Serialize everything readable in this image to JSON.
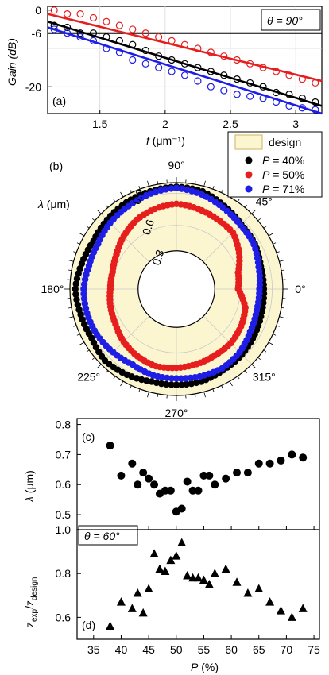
{
  "colors": {
    "black": "#000000",
    "red": "#e61e1e",
    "blue": "#1e1ee6",
    "design_fill": "#fbf6cf",
    "design_edge": "#c8b560"
  },
  "chart_data": [
    {
      "panel": "(a)",
      "type": "scatter",
      "annotation": "θ = 90°",
      "xlabel_var": "f",
      "xlabel_unit": " (μm⁻¹)",
      "ylabel": "Gain (dB)",
      "xlim": [
        1.1,
        3.2
      ],
      "ylim": [
        -27,
        1
      ],
      "x_ticks": [
        1.5,
        2,
        2.5,
        3
      ],
      "y_ticks": [
        0,
        -6,
        -20
      ],
      "hline_y": -6,
      "grid": true,
      "series": [
        {
          "color": "#000000",
          "x": [
            1.15,
            1.25,
            1.35,
            1.45,
            1.55,
            1.65,
            1.75,
            1.85,
            1.95,
            2.05,
            2.15,
            2.25,
            2.35,
            2.45,
            2.55,
            2.65,
            2.75,
            2.85,
            2.95,
            3.05,
            3.15
          ],
          "y": [
            -4,
            -4.5,
            -6,
            -6,
            -7,
            -8,
            -9,
            -10.5,
            -12,
            -13,
            -14,
            -15,
            -16,
            -17,
            -18,
            -19,
            -20,
            -21.5,
            -22,
            -23,
            -24
          ],
          "fit": {
            "x": [
              1.1,
              3.2
            ],
            "y": [
              -3,
              -25
            ]
          }
        },
        {
          "color": "#e61e1e",
          "x": [
            1.15,
            1.25,
            1.35,
            1.45,
            1.55,
            1.65,
            1.75,
            1.85,
            1.95,
            2.05,
            2.15,
            2.25,
            2.35,
            2.45,
            2.55,
            2.65,
            2.75,
            2.85,
            2.95,
            3.05,
            3.15
          ],
          "y": [
            0,
            -1,
            -1,
            -2,
            -3,
            -4,
            -5,
            -6,
            -7,
            -8,
            -9,
            -10,
            -11,
            -12,
            -13,
            -14,
            -15,
            -16,
            -17,
            -18,
            -19
          ],
          "fit": {
            "x": [
              1.1,
              3.2
            ],
            "y": [
              -1,
              -18.5
            ]
          }
        },
        {
          "color": "#1e1ee6",
          "x": [
            1.15,
            1.25,
            1.35,
            1.45,
            1.55,
            1.65,
            1.75,
            1.85,
            1.95,
            2.05,
            2.15,
            2.25,
            2.35,
            2.45,
            2.55,
            2.65,
            2.75,
            2.85,
            2.95,
            3.05,
            3.15
          ],
          "y": [
            -5,
            -6,
            -7,
            -8,
            -10,
            -11,
            -13,
            -14,
            -15,
            -16,
            -17,
            -18.5,
            -20,
            -21,
            -22,
            -22.5,
            -23,
            -24,
            -25,
            -25.5,
            -26
          ],
          "fit": {
            "x": [
              1.1,
              3.2
            ],
            "y": [
              -4.5,
              -27
            ]
          }
        }
      ]
    },
    {
      "panel": "(b)",
      "type": "scatter",
      "projection": "polar",
      "radial_label_var": "λ",
      "radial_label_unit": " (μm)",
      "rlim": [
        0,
        1.0
      ],
      "r_ticks": [
        "0.3",
        "0.6",
        "0.9"
      ],
      "angle_ticks": [
        "0°",
        "45°",
        "90°",
        "180°",
        "225°",
        "270°",
        "315°"
      ],
      "design": {
        "name": "design",
        "r_inner": 0.36,
        "r_outer": 1.0
      },
      "legend_position": "top-right",
      "series": [
        {
          "name_var": "P",
          "name_value": " = 40%",
          "color": "#000000",
          "angle_deg": [
            0,
            15,
            30,
            45,
            60,
            75,
            90,
            105,
            120,
            135,
            150,
            165,
            180,
            195,
            210,
            225,
            240,
            255,
            270,
            285,
            300,
            315,
            330,
            345
          ],
          "r": [
            0.82,
            0.82,
            0.85,
            0.86,
            0.9,
            0.95,
            0.96,
            0.95,
            0.94,
            0.92,
            0.9,
            0.92,
            0.95,
            0.93,
            0.92,
            0.95,
            0.93,
            0.9,
            0.9,
            0.9,
            0.88,
            0.87,
            0.85,
            0.83
          ]
        },
        {
          "name_var": "P",
          "name_value": " = 50%",
          "color": "#e61e1e",
          "angle_deg": [
            0,
            15,
            30,
            45,
            60,
            75,
            90,
            105,
            120,
            135,
            150,
            165,
            180,
            195,
            210,
            225,
            240,
            255,
            270,
            285,
            300,
            315,
            330,
            345
          ],
          "r": [
            0.58,
            0.6,
            0.68,
            0.75,
            0.76,
            0.78,
            0.8,
            0.78,
            0.75,
            0.7,
            0.65,
            0.62,
            0.62,
            0.64,
            0.66,
            0.7,
            0.73,
            0.75,
            0.74,
            0.73,
            0.72,
            0.72,
            0.7,
            0.67
          ]
        },
        {
          "name_var": "P",
          "name_value": " = 71%",
          "color": "#1e1ee6",
          "angle_deg": [
            0,
            15,
            30,
            45,
            60,
            75,
            90,
            105,
            120,
            135,
            150,
            165,
            180,
            195,
            210,
            225,
            240,
            255,
            270,
            285,
            300,
            315,
            330,
            345
          ],
          "r": [
            0.78,
            0.8,
            0.84,
            0.85,
            0.88,
            0.92,
            0.95,
            0.93,
            0.9,
            0.88,
            0.85,
            0.85,
            0.87,
            0.87,
            0.86,
            0.84,
            0.82,
            0.84,
            0.84,
            0.85,
            0.86,
            0.84,
            0.8,
            0.78
          ]
        }
      ]
    },
    {
      "panel": "(c)",
      "type": "scatter",
      "ylabel_var": "λ",
      "ylabel_unit": " (μm)",
      "xlim": [
        32,
        76
      ],
      "ylim": [
        0.45,
        0.82
      ],
      "y_ticks": [
        0.5,
        0.6,
        0.7,
        0.8
      ],
      "annotation": "θ = 60°",
      "series": [
        {
          "color": "#000000",
          "x": [
            38,
            40,
            42,
            43,
            44,
            45,
            46,
            47,
            48,
            49,
            50,
            51,
            52,
            53,
            54,
            55,
            56,
            57,
            59,
            61,
            63,
            65,
            67,
            69,
            71,
            73
          ],
          "y": [
            0.73,
            0.63,
            0.67,
            0.6,
            0.64,
            0.62,
            0.6,
            0.57,
            0.58,
            0.58,
            0.51,
            0.52,
            0.61,
            0.58,
            0.58,
            0.63,
            0.63,
            0.6,
            0.62,
            0.64,
            0.64,
            0.67,
            0.67,
            0.68,
            0.7,
            0.69
          ]
        }
      ]
    },
    {
      "panel": "(d)",
      "type": "scatter",
      "ylabel": "z_exp/z_design",
      "xlabel_var": "P",
      "xlabel_unit": " (%)",
      "xlim": [
        32,
        76
      ],
      "ylim": [
        0.5,
        1.0
      ],
      "x_ticks": [
        35,
        40,
        45,
        50,
        55,
        60,
        65,
        70,
        75
      ],
      "y_ticks": [
        0.6,
        0.8,
        1.0
      ],
      "series": [
        {
          "color": "#000000",
          "x": [
            38,
            40,
            42,
            43,
            44,
            45,
            46,
            47,
            48,
            49,
            50,
            51,
            52,
            53,
            54,
            55,
            56,
            57,
            59,
            61,
            63,
            65,
            67,
            69,
            71,
            73
          ],
          "y": [
            0.56,
            0.67,
            0.64,
            0.71,
            0.62,
            0.73,
            0.89,
            0.82,
            0.81,
            0.86,
            0.88,
            0.94,
            0.79,
            0.78,
            0.78,
            0.77,
            0.75,
            0.8,
            0.82,
            0.76,
            0.71,
            0.73,
            0.67,
            0.63,
            0.6,
            0.64
          ]
        }
      ]
    }
  ]
}
